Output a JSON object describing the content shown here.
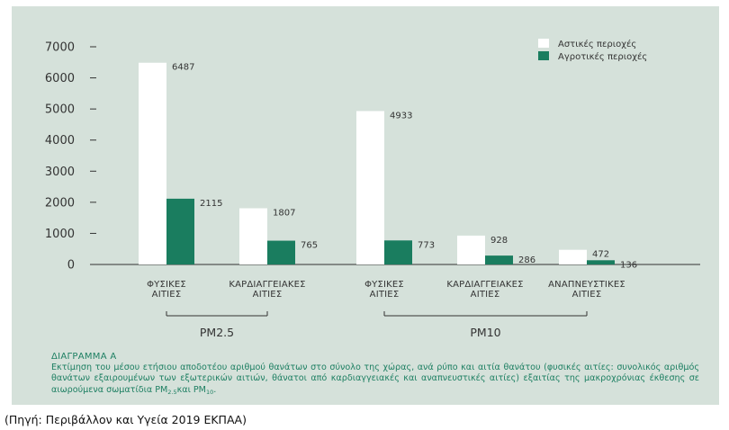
{
  "chart_data": {
    "type": "bar",
    "ylim": [
      0,
      7000
    ],
    "yticks": [
      0,
      1000,
      2000,
      3000,
      4000,
      5000,
      6000,
      7000
    ],
    "grid": false,
    "legend_position": "top-right",
    "categories": [
      "ΦΥΣΙΚΕΣ ΑΙΤΙΕΣ",
      "ΚΑΡΔΙΑΓΓΕΙΑΚΕΣ ΑΙΤΙΕΣ",
      "ΦΥΣΙΚΕΣ ΑΙΤΙΕΣ",
      "ΚΑΡΔΙΑΓΓΕΙΑΚΕΣ ΑΙΤΙΕΣ",
      "ΑΝΑΠΝΕΥΣΤΙΚΕΣ ΑΙΤΙΕΣ"
    ],
    "category_lines": [
      [
        "ΦΥΣΙΚΕΣ",
        "ΑΙΤΙΕΣ"
      ],
      [
        "ΚΑΡΔΙΑΓΓΕΙΑΚΕΣ",
        "ΑΙΤΙΕΣ"
      ],
      [
        "ΦΥΣΙΚΕΣ",
        "ΑΙΤΙΕΣ"
      ],
      [
        "ΚΑΡΔΙΑΓΓΕΙΑΚΕΣ",
        "ΑΙΤΙΕΣ"
      ],
      [
        "ΑΝΑΠΝΕΥΣΤΙΚΕΣ",
        "ΑΙΤΙΕΣ"
      ]
    ],
    "groups": [
      {
        "label": "PM2.5",
        "categories": [
          0,
          1
        ]
      },
      {
        "label": "PM10",
        "categories": [
          2,
          3,
          4
        ]
      }
    ],
    "series": [
      {
        "name": "Αστικές περιοχές",
        "color": "#ffffff",
        "values": [
          6487,
          1807,
          4933,
          928,
          472
        ]
      },
      {
        "name": "Αγροτικές περιοχές",
        "color": "#1a7d5f",
        "values": [
          2115,
          765,
          773,
          286,
          136
        ]
      }
    ]
  },
  "caption": {
    "heading": "ΔΙΑΓΡΑΜΜΑ Α",
    "line1": "Εκτίμηση του μέσου ετήσιου αποδοτέου αριθμού θανάτων στο σύνολο της χώρας, ανά ρύπο και αιτία θανάτου (φυσικές αιτίες:",
    "line2": "συνολικός αριθμός θανάτων εξαιρουμένων των εξωτερικών αιτιών, θάνατοι από καρδιαγγειακές και αναπνευστικές αιτίες) εξαιτίας",
    "line3_pre": "της μακροχρόνιας έκθεσης σε αιωρούμενα σωματίδια PM",
    "sub1": "2.5",
    "line3_mid": "και PM",
    "sub2": "10",
    "line3_end": "."
  },
  "source": "(Πηγή: Περιβάλλον και Υγεία 2019 ΕΚΠΑΑ)"
}
